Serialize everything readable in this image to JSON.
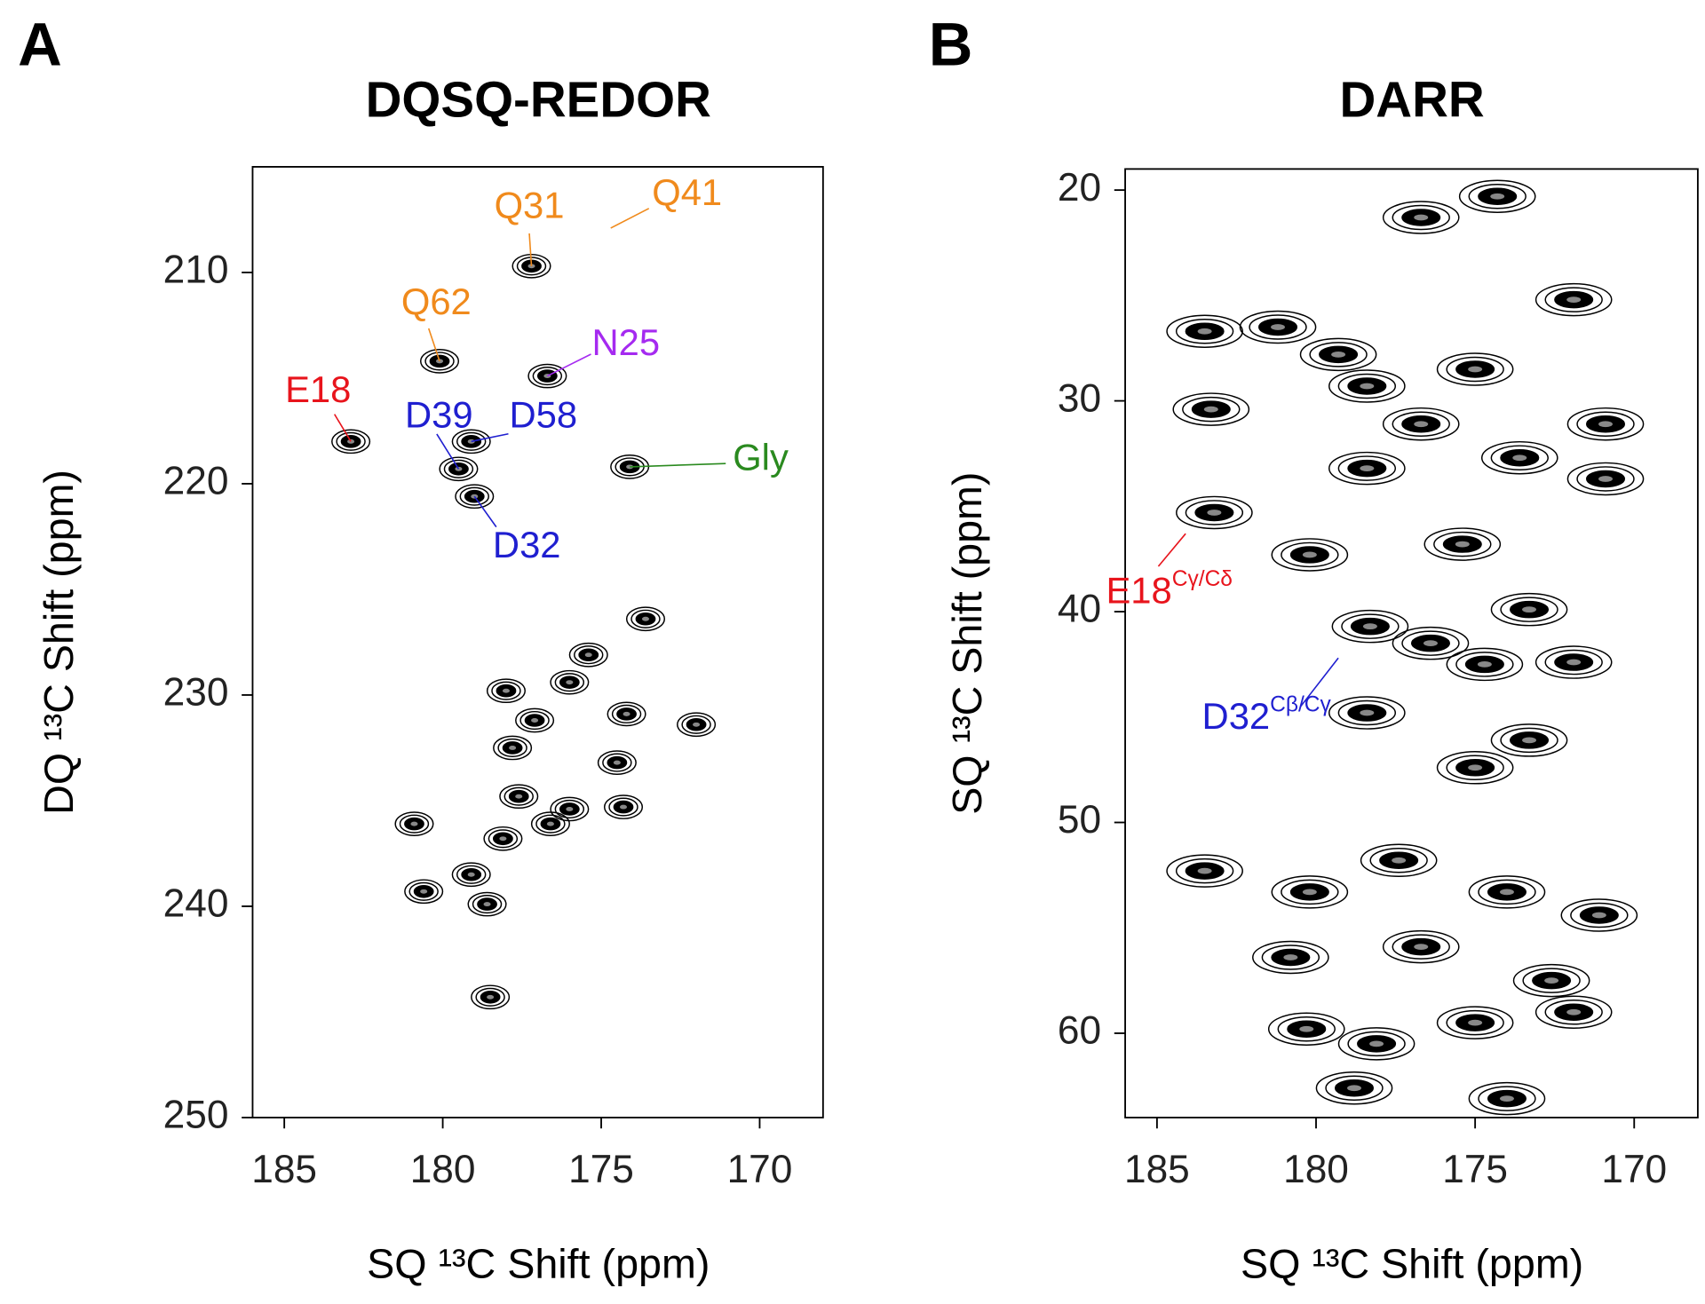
{
  "chart_data": [
    {
      "type": "scatter",
      "panel_label": "A",
      "title": "DQSQ-REDOR",
      "x_label": "SQ ¹³C Shift (ppm)",
      "y_label": "DQ ¹³C Shift (ppm)",
      "xlim": [
        186,
        168
      ],
      "ylim": [
        250,
        205
      ],
      "xticks": [
        185,
        180,
        175,
        170
      ],
      "yticks": [
        210,
        220,
        230,
        240,
        250
      ],
      "color": "#000000",
      "x": [
        182.9,
        177.2,
        180.1,
        176.7,
        179.5,
        179.1,
        179.0,
        174.1,
        173.6,
        175.4,
        176.0,
        177.1,
        177.8,
        174.2,
        174.5,
        178.0,
        172.0,
        177.6,
        174.3,
        176.6,
        176.0,
        180.9,
        178.1,
        180.6,
        179.1,
        178.6,
        178.5
      ],
      "y": [
        218.0,
        209.7,
        214.2,
        214.9,
        219.3,
        218.0,
        220.6,
        219.2,
        226.4,
        228.1,
        229.4,
        231.2,
        232.5,
        230.9,
        233.2,
        229.8,
        231.4,
        234.8,
        235.3,
        236.1,
        235.4,
        236.1,
        236.8,
        239.3,
        238.5,
        239.9,
        244.3
      ],
      "annotations": [
        {
          "text": "E18",
          "color": "#e8141c",
          "x": 182.9,
          "y": 218.0
        },
        {
          "text": "Q31",
          "color": "#f08a1c",
          "x": 177.2,
          "y": 209.7
        },
        {
          "text": "Q62",
          "color": "#f08a1c",
          "x": 180.1,
          "y": 214.2
        },
        {
          "text": "N25",
          "color": "#a52af0",
          "x": 176.7,
          "y": 214.9
        },
        {
          "text": "Q41",
          "color": "#f08a1c",
          "x": 174.7,
          "y": 207.9
        },
        {
          "text": "D39",
          "color": "#1f1fd0",
          "x": 179.5,
          "y": 219.3
        },
        {
          "text": "D58",
          "color": "#1f1fd0",
          "x": 179.1,
          "y": 218.0
        },
        {
          "text": "D32",
          "color": "#1f1fd0",
          "x": 179.0,
          "y": 220.6
        },
        {
          "text": "Gly",
          "color": "#2a8a1f",
          "x": 174.1,
          "y": 219.2
        }
      ]
    },
    {
      "type": "scatter",
      "panel_label": "B",
      "title": "DARR",
      "x_label": "SQ ¹³C Shift (ppm)",
      "y_label": "SQ ¹³C Shift (ppm)",
      "xlim": [
        186,
        168
      ],
      "ylim": [
        64,
        19
      ],
      "xticks": [
        185,
        180,
        175,
        170
      ],
      "yticks": [
        20,
        30,
        40,
        50,
        60
      ],
      "color": "#000000",
      "x": [
        183.5,
        183.3,
        183.2,
        181.2,
        179.3,
        178.4,
        176.7,
        175.0,
        173.6,
        178.4,
        176.7,
        174.3,
        171.9,
        170.9,
        170.9,
        180.2,
        175.4,
        173.3,
        178.3,
        176.4,
        174.7,
        171.9,
        173.3,
        175.0,
        178.4,
        183.5,
        180.2,
        177.4,
        174.0,
        171.1,
        180.8,
        176.7,
        172.6,
        180.3,
        178.1,
        175.0,
        171.9,
        178.8,
        174.0
      ],
      "y": [
        26.7,
        30.4,
        35.3,
        26.5,
        27.8,
        29.3,
        31.1,
        28.5,
        32.7,
        33.2,
        21.3,
        20.3,
        25.2,
        31.1,
        33.7,
        37.3,
        36.8,
        39.9,
        40.7,
        41.5,
        42.5,
        42.4,
        46.1,
        47.4,
        44.8,
        52.3,
        53.3,
        51.8,
        53.3,
        54.4,
        56.4,
        55.9,
        57.5,
        59.8,
        60.5,
        59.5,
        59.0,
        62.6,
        63.1
      ],
      "annotations": [
        {
          "text": "E18",
          "sup": "Cγ/Cδ",
          "color": "#e8141c",
          "x": 184.1,
          "y": 36.3
        },
        {
          "text": "D32",
          "sup": "Cβ/Cγ",
          "color": "#1f1fd0",
          "x": 179.3,
          "y": 42.2
        }
      ]
    }
  ]
}
